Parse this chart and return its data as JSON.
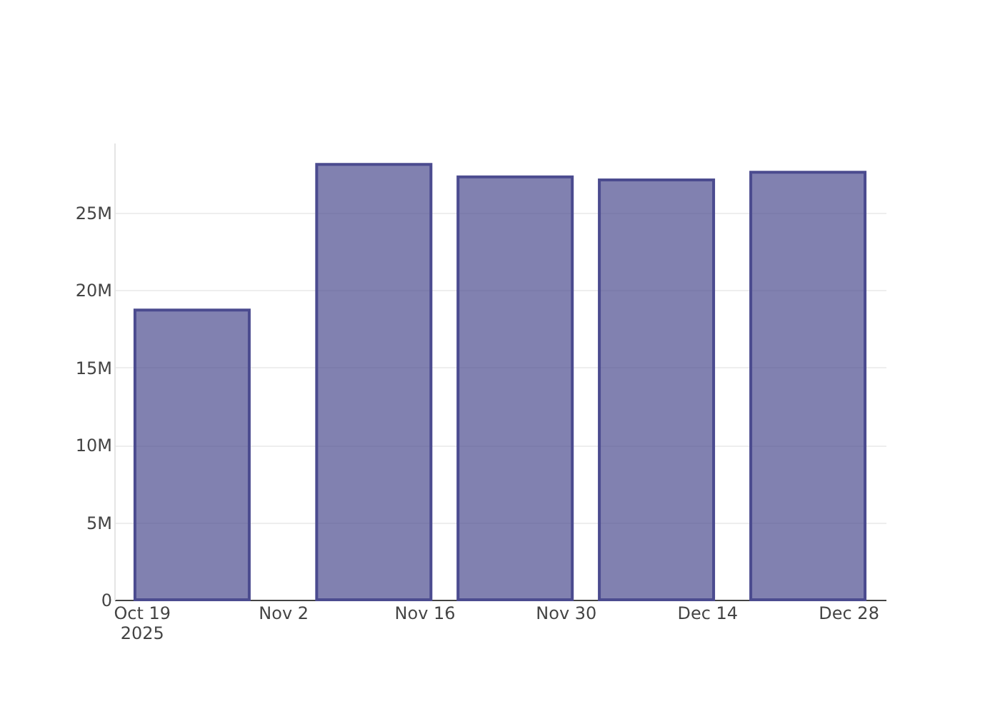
{
  "chart_data": {
    "type": "bar",
    "x": [
      "2025-10-24",
      "2025-11-11",
      "2025-11-25",
      "2025-12-09",
      "2025-12-24"
    ],
    "series": [
      {
        "color": "#4b4b8f",
        "values": [
          18700000,
          28100000,
          27300000,
          27100000,
          27600000
        ]
      }
    ],
    "xlim": [
      "2025-10-17",
      "2025-12-31"
    ],
    "xticks": [
      {
        "value": "2025-10-19",
        "label": "Oct 19\n2025"
      },
      {
        "value": "2025-11-02",
        "label": "Nov 2"
      },
      {
        "value": "2025-11-16",
        "label": "Nov 16"
      },
      {
        "value": "2025-11-30",
        "label": "Nov 30"
      },
      {
        "value": "2025-12-14",
        "label": "Dec 14"
      },
      {
        "value": "2025-12-28",
        "label": "Dec 28"
      }
    ],
    "ylim": [
      0,
      29500000
    ],
    "yticks": [
      0,
      {
        "value": 5000000,
        "label": "5M"
      },
      {
        "value": 10000000,
        "label": "10M"
      },
      {
        "value": 15000000,
        "label": "15M"
      },
      {
        "value": 20000000,
        "label": "20M"
      },
      {
        "value": 25000000,
        "label": "25M"
      }
    ],
    "grid": "y"
  }
}
